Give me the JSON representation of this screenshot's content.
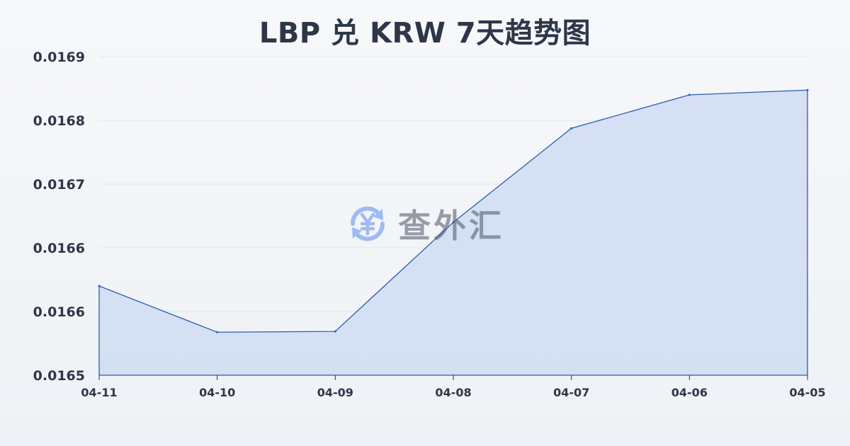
{
  "chart_data": {
    "type": "area",
    "title": "LBP 兑 KRW 7天趋势图",
    "categories": [
      "04-11",
      "04-10",
      "04-09",
      "04-08",
      "04-07",
      "04-06",
      "04-05"
    ],
    "series": [
      {
        "values": [
          0.016612,
          0.016554,
          0.016555,
          0.016692,
          0.01681,
          0.016852,
          0.016858
        ]
      }
    ],
    "y_tick_labels": [
      "0.0169",
      "0.0168",
      "0.0167",
      "0.0166",
      "0.0166",
      "0.0165"
    ],
    "ylim": [
      0.0165,
      0.0169
    ],
    "grid": true,
    "line_color": "#2a5db0",
    "fill_color": "#c9d7f2"
  },
  "watermark": {
    "text": "查外汇",
    "icon": "yen-exchange-icon",
    "color": "#5b8def"
  }
}
